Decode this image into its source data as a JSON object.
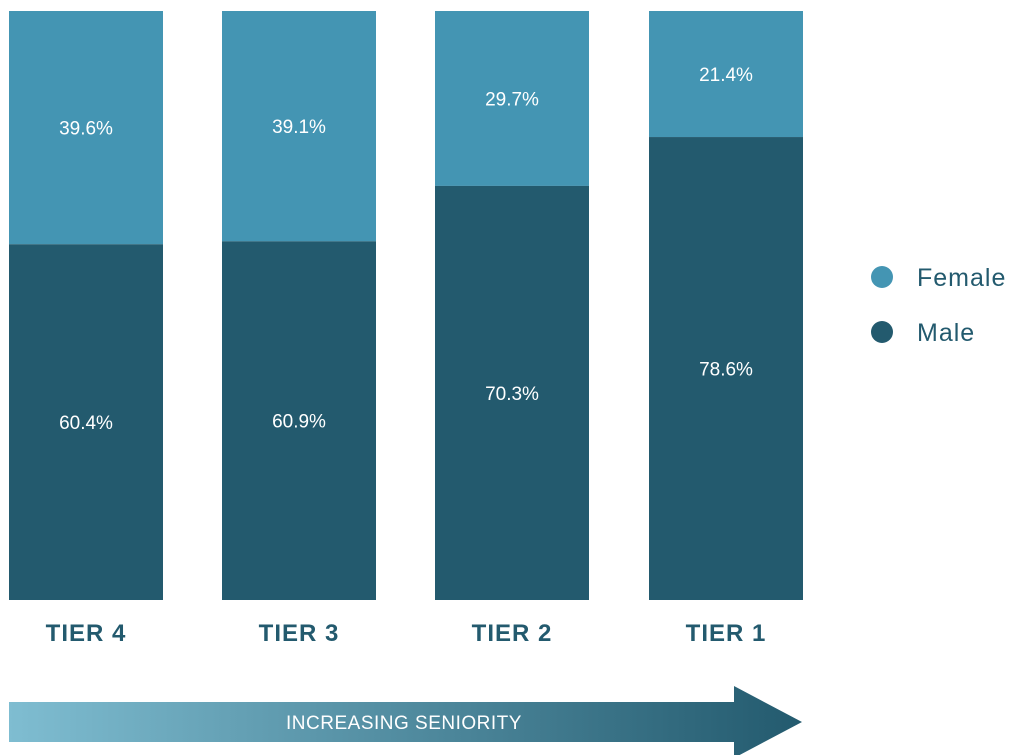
{
  "chart_data": {
    "type": "bar",
    "stacked": true,
    "normalized": true,
    "categories": [
      "TIER 4",
      "TIER 3",
      "TIER 2",
      "TIER 1"
    ],
    "series": [
      {
        "name": "Female",
        "values": [
          39.6,
          39.1,
          29.7,
          21.4
        ],
        "color": "#4495b3"
      },
      {
        "name": "Male",
        "values": [
          60.4,
          60.9,
          70.3,
          78.6
        ],
        "color": "#235a6e"
      }
    ],
    "value_suffix": "%",
    "ylim": [
      0,
      100
    ],
    "grid": false,
    "legend_placement": "right",
    "annotation": "INCREASING SENIORITY",
    "arrow_gradient": [
      "#7fbdd1",
      "#235a6e"
    ]
  }
}
